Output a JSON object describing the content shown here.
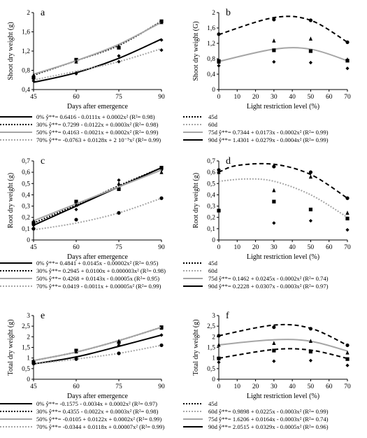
{
  "chart_data": [
    {
      "panel": "a",
      "type": "line",
      "xlabel": "Days after emergence",
      "ylabel": "Shoot dry weight (g)",
      "x_ticks": [
        "45",
        "60",
        "75",
        "90"
      ],
      "y_ticks": [
        "0,4",
        "0,8",
        "1,2",
        "1,6",
        "2"
      ],
      "xlim": [
        45,
        90
      ],
      "ylim": [
        0.4,
        2.0
      ],
      "series": [
        {
          "name": "0%",
          "style": "solid-black",
          "marker": "diamond",
          "x": [
            45,
            60,
            75,
            90
          ],
          "y": [
            0.55,
            0.75,
            1.05,
            1.45
          ],
          "points": [
            [
              45,
              0.58
            ],
            [
              60,
              0.75
            ],
            [
              75,
              1.1
            ],
            [
              90,
              1.43
            ]
          ]
        },
        {
          "name": "30%",
          "style": "dot-black",
          "marker": "square",
          "x": [
            45,
            60,
            75,
            90
          ],
          "y": [
            0.7,
            1.0,
            1.32,
            1.82
          ],
          "points": [
            [
              45,
              0.65
            ],
            [
              60,
              1.02
            ],
            [
              75,
              1.27
            ],
            [
              90,
              1.82
            ]
          ]
        },
        {
          "name": "50%",
          "style": "solid-gray",
          "marker": "triangle",
          "x": [
            45,
            60,
            75,
            90
          ],
          "y": [
            0.72,
            1.0,
            1.34,
            1.8
          ],
          "points": [
            [
              45,
              0.7
            ],
            [
              60,
              0.98
            ],
            [
              75,
              1.3
            ],
            [
              90,
              1.8
            ]
          ]
        },
        {
          "name": "70%",
          "style": "dot-gray",
          "marker": "diamond",
          "x": [
            45,
            60,
            75,
            90
          ],
          "y": [
            0.6,
            0.78,
            0.98,
            1.25
          ],
          "points": [
            [
              45,
              0.62
            ],
            [
              60,
              0.73
            ],
            [
              75,
              0.98
            ],
            [
              90,
              1.22
            ]
          ]
        }
      ],
      "legend": [
        {
          "label": "0% ŷ**= 0.6416 - 0.0111x + 0.0002x² (R²= 0.98)",
          "style": "solid-black"
        },
        {
          "label": "30% ŷ**= 0.7299 - 0.0122x + 0.0003x² (R²= 0.98)",
          "style": "dot-black"
        },
        {
          "label": "50% ŷ**= 0.4163 - 0.0021x + 0.0002x² (R²= 0.99)",
          "style": "solid-gray"
        },
        {
          "label": "70% ŷ**= -0.0763 + 0.0128x + 2 10⁻⁵x² (R²= 0.99)",
          "style": "dot-gray"
        }
      ]
    },
    {
      "panel": "b",
      "type": "line",
      "xlabel": "Light restriction level (%)",
      "ylabel": "Shoot dry weight (G)",
      "x_ticks": [
        "0",
        "10",
        "20",
        "30",
        "40",
        "50",
        "60",
        "70"
      ],
      "y_ticks": [
        "0",
        "0,4",
        "0,8",
        "1,2",
        "1,6",
        "2"
      ],
      "xlim": [
        0,
        70
      ],
      "ylim": [
        0,
        2.0
      ],
      "series": [
        {
          "name": "75d",
          "style": "solid-gray",
          "marker": "square",
          "x": [
            0,
            30,
            50,
            70
          ],
          "y": [
            0.73,
            1.05,
            1.05,
            0.75
          ],
          "points": [
            [
              0,
              0.74
            ],
            [
              30,
              1.02
            ],
            [
              50,
              1.0
            ],
            [
              70,
              0.75
            ]
          ]
        },
        {
          "name": "90d",
          "style": "dash-black",
          "marker": "circle",
          "x": [
            0,
            30,
            50,
            70
          ],
          "y": [
            1.43,
            1.87,
            1.8,
            1.23
          ],
          "points": [
            [
              0,
              1.44
            ],
            [
              30,
              1.82
            ],
            [
              50,
              1.8
            ],
            [
              70,
              1.23
            ]
          ]
        },
        {
          "name": "60d",
          "style": "marker-only",
          "marker": "triangle",
          "x": [],
          "y": [],
          "points": [
            [
              0,
              0.72
            ],
            [
              30,
              1.27
            ],
            [
              50,
              1.32
            ],
            [
              70,
              0.78
            ]
          ]
        },
        {
          "name": "45d",
          "style": "marker-only",
          "marker": "diamond",
          "x": [],
          "y": [],
          "points": [
            [
              0,
              0.62
            ],
            [
              30,
              0.72
            ],
            [
              50,
              0.7
            ],
            [
              70,
              0.55
            ]
          ]
        }
      ],
      "legend": [
        {
          "label": "45d",
          "style": "dot-black"
        },
        {
          "label": "60d",
          "style": "dot-gray"
        },
        {
          "label": "75d ŷ**= 0.7344 + 0.0173x - 0.0002x² (R²= 0.99)",
          "style": "solid-gray"
        },
        {
          "label": "90d ŷ**= 1.4301 + 0.0279x - 0.0004x² (R²= 0.99)",
          "style": "solid-black"
        }
      ]
    },
    {
      "panel": "c",
      "type": "line",
      "xlabel": "Days after emergence",
      "ylabel": "Root dry weight (g)",
      "x_ticks": [
        "45",
        "60",
        "75",
        "90"
      ],
      "y_ticks": [
        "0",
        "0,1",
        "0,2",
        "0,3",
        "0,4",
        "0,5",
        "0,6",
        "0,7"
      ],
      "xlim": [
        45,
        90
      ],
      "ylim": [
        0,
        0.7
      ],
      "series": [
        {
          "name": "0%",
          "style": "solid-black",
          "marker": "diamond",
          "x": [
            45,
            60,
            75,
            90
          ],
          "y": [
            0.13,
            0.3,
            0.47,
            0.64
          ],
          "points": [
            [
              45,
              0.13
            ],
            [
              60,
              0.27
            ],
            [
              75,
              0.53
            ],
            [
              90,
              0.62
            ]
          ]
        },
        {
          "name": "30%",
          "style": "dot-black",
          "marker": "square",
          "x": [
            45,
            60,
            75,
            90
          ],
          "y": [
            0.15,
            0.31,
            0.48,
            0.64
          ],
          "points": [
            [
              45,
              0.15
            ],
            [
              60,
              0.34
            ],
            [
              75,
              0.45
            ],
            [
              90,
              0.64
            ]
          ]
        },
        {
          "name": "50%",
          "style": "solid-gray",
          "marker": "triangle",
          "x": [
            45,
            60,
            75,
            90
          ],
          "y": [
            0.17,
            0.32,
            0.47,
            0.62
          ],
          "points": [
            [
              45,
              0.17
            ],
            [
              60,
              0.31
            ],
            [
              75,
              0.5
            ],
            [
              90,
              0.6
            ]
          ]
        },
        {
          "name": "70%",
          "style": "dot-gray",
          "marker": "circle",
          "x": [
            45,
            60,
            75,
            90
          ],
          "y": [
            0.09,
            0.15,
            0.24,
            0.37
          ],
          "points": [
            [
              45,
              0.1
            ],
            [
              60,
              0.18
            ],
            [
              75,
              0.24
            ],
            [
              90,
              0.37
            ]
          ]
        }
      ],
      "legend": [
        {
          "label": "0% ŷ**= 0.4841 + 0.0145x - 0.00002x² (R²= 0.95)",
          "style": "solid-black"
        },
        {
          "label": "30% ŷ**= 0.2945 + 0.0100x + 0.000003x² (R²= 0.98)",
          "style": "dot-black"
        },
        {
          "label": "50% ŷ**= 0.4268 + 0.0143x - 0.00005x (R²= 0.95)",
          "style": "solid-gray"
        },
        {
          "label": "70% ŷ**= 0.0419 - 0.0011x + 0.00005x² (R²= 0.99)",
          "style": "dot-gray"
        }
      ]
    },
    {
      "panel": "d",
      "type": "line",
      "xlabel": "Light restriction level (%)",
      "ylabel": "Root dry weight (g)",
      "x_ticks": [
        "0",
        "10",
        "20",
        "30",
        "40",
        "50",
        "60",
        "70"
      ],
      "y_ticks": [
        "0",
        "0,1",
        "0,2",
        "0,3",
        "0,4",
        "0,5",
        "0,6",
        "0,7"
      ],
      "xlim": [
        0,
        70
      ],
      "ylim": [
        0,
        0.7
      ],
      "series": [
        {
          "name": "75d",
          "style": "dot-gray",
          "marker": "triangle",
          "x": [
            0,
            15,
            30,
            50,
            70
          ],
          "y": [
            0.52,
            0.54,
            0.52,
            0.4,
            0.2
          ],
          "points": [
            [
              0,
              0.6
            ],
            [
              30,
              0.44
            ],
            [
              50,
              0.56
            ],
            [
              70,
              0.24
            ]
          ]
        },
        {
          "name": "90d",
          "style": "dash-black",
          "marker": "circle",
          "x": [
            0,
            10,
            30,
            50,
            70
          ],
          "y": [
            0.6,
            0.66,
            0.67,
            0.58,
            0.37
          ],
          "points": [
            [
              0,
              0.62
            ],
            [
              30,
              0.65
            ],
            [
              50,
              0.6
            ],
            [
              70,
              0.37
            ]
          ]
        },
        {
          "name": "60d",
          "style": "marker-only",
          "marker": "square",
          "x": [],
          "y": [],
          "points": [
            [
              0,
              0.26
            ],
            [
              30,
              0.34
            ],
            [
              50,
              0.27
            ],
            [
              70,
              0.19
            ]
          ]
        },
        {
          "name": "45d",
          "style": "marker-only",
          "marker": "diamond",
          "x": [],
          "y": [],
          "points": [
            [
              30,
              0.15
            ],
            [
              50,
              0.17
            ],
            [
              70,
              0.09
            ]
          ]
        }
      ],
      "legend": [
        {
          "label": "45d",
          "style": "dot-black"
        },
        {
          "label": "60d",
          "style": "dot-gray"
        },
        {
          "label": "75d ŷ**= 0.1462 + 0.0245x - 0.0002x² (R²= 0.74)",
          "style": "solid-gray"
        },
        {
          "label": "90d ŷ**= 0.2228 + 0.0307x - 0.0003x² (R²= 0.97)",
          "style": "solid-black"
        }
      ]
    },
    {
      "panel": "e",
      "type": "line",
      "xlabel": "Days after emergence",
      "ylabel": "Total dry weight (g)",
      "x_ticks": [
        "45",
        "60",
        "75",
        "90"
      ],
      "y_ticks": [
        "0",
        "0,5",
        "1",
        "1,5",
        "2",
        "2,5",
        "3"
      ],
      "xlim": [
        45,
        90
      ],
      "ylim": [
        0,
        3
      ],
      "series": [
        {
          "name": "0%",
          "style": "solid-black",
          "marker": "diamond",
          "x": [
            45,
            60,
            75,
            90
          ],
          "y": [
            0.72,
            1.05,
            1.55,
            2.08
          ],
          "points": [
            [
              45,
              0.72
            ],
            [
              60,
              1.02
            ],
            [
              75,
              1.6
            ],
            [
              90,
              2.08
            ]
          ]
        },
        {
          "name": "30%",
          "style": "dot-black",
          "marker": "square",
          "x": [
            45,
            60,
            75,
            90
          ],
          "y": [
            0.88,
            1.28,
            1.82,
            2.45
          ],
          "points": [
            [
              45,
              0.82
            ],
            [
              60,
              1.35
            ],
            [
              75,
              1.75
            ],
            [
              90,
              2.45
            ]
          ]
        },
        {
          "name": "50%",
          "style": "solid-gray",
          "marker": "triangle",
          "x": [
            45,
            60,
            75,
            90
          ],
          "y": [
            0.88,
            1.28,
            1.82,
            2.45
          ],
          "points": [
            [
              45,
              0.88
            ],
            [
              60,
              1.3
            ],
            [
              75,
              1.8
            ],
            [
              90,
              2.42
            ]
          ]
        },
        {
          "name": "70%",
          "style": "dot-gray",
          "marker": "circle",
          "x": [
            45,
            60,
            75,
            90
          ],
          "y": [
            0.72,
            0.95,
            1.22,
            1.6
          ],
          "points": [
            [
              45,
              0.74
            ],
            [
              60,
              0.95
            ],
            [
              75,
              1.22
            ],
            [
              90,
              1.6
            ]
          ]
        }
      ],
      "legend": [
        {
          "label": "0% ŷ**= -0.1575 - 0.0034x + 0.0002x² (R²= 0.97)",
          "style": "solid-black"
        },
        {
          "label": "30% ŷ**= 0.4355 - 0.0022x + 0.0003x² (R²= 0.98)",
          "style": "dot-black"
        },
        {
          "label": "50% ŷ**= -0.0105 + 0.0122x + 0.0002x² (R²= 0.99)",
          "style": "solid-gray"
        },
        {
          "label": "70% ŷ**= -0.0344 + 0.0118x + 0.00007x² (R²= 0.99)",
          "style": "dot-gray"
        }
      ]
    },
    {
      "panel": "f",
      "type": "line",
      "xlabel": "Light restriction level (%)",
      "ylabel": "Total dry weight (g)",
      "x_ticks": [
        "0",
        "10",
        "20",
        "30",
        "40",
        "50",
        "60",
        "70"
      ],
      "y_ticks": [
        "0",
        "0,5",
        "1",
        "1,5",
        "2",
        "2,5",
        "3"
      ],
      "xlim": [
        0,
        70
      ],
      "ylim": [
        0,
        3
      ],
      "series": [
        {
          "name": "60d",
          "style": "dash-black",
          "marker": "square",
          "x": [
            0,
            30,
            50,
            70
          ],
          "y": [
            0.99,
            1.4,
            1.37,
            0.98
          ],
          "points": [
            [
              0,
              0.98
            ],
            [
              30,
              1.35
            ],
            [
              50,
              1.3
            ],
            [
              70,
              0.95
            ]
          ]
        },
        {
          "name": "75d",
          "style": "solid-gray",
          "marker": "triangle",
          "x": [
            0,
            30,
            50,
            70
          ],
          "y": [
            1.62,
            1.86,
            1.79,
            1.33
          ],
          "points": [
            [
              0,
              1.62
            ],
            [
              30,
              1.7
            ],
            [
              50,
              1.8
            ],
            [
              70,
              1.25
            ]
          ]
        },
        {
          "name": "90d",
          "style": "dash-black",
          "marker": "circle",
          "x": [
            0,
            30,
            50,
            70
          ],
          "y": [
            2.05,
            2.55,
            2.4,
            1.6
          ],
          "points": [
            [
              0,
              2.05
            ],
            [
              30,
              2.45
            ],
            [
              50,
              2.38
            ],
            [
              70,
              1.6
            ]
          ]
        },
        {
          "name": "45d",
          "style": "marker-only",
          "marker": "diamond",
          "x": [],
          "y": [],
          "points": [
            [
              0,
              0.8
            ],
            [
              30,
              0.85
            ],
            [
              50,
              0.88
            ],
            [
              70,
              0.65
            ]
          ]
        }
      ],
      "legend": [
        {
          "label": "45d",
          "style": "dot-black"
        },
        {
          "label": "60d ŷ**= 0.9898 + 0.0225x - 0.0003x² (R²= 0.99)",
          "style": "dot-gray"
        },
        {
          "label": "75d ŷ**= 1.6206 + 0.0164x - 0.0003x² (R²= 0.74)",
          "style": "solid-gray"
        },
        {
          "label": "90d ŷ**= 2.0515 + 0.0329x - 0.0005x² (R²= 0.96)",
          "style": "solid-black"
        }
      ]
    }
  ]
}
